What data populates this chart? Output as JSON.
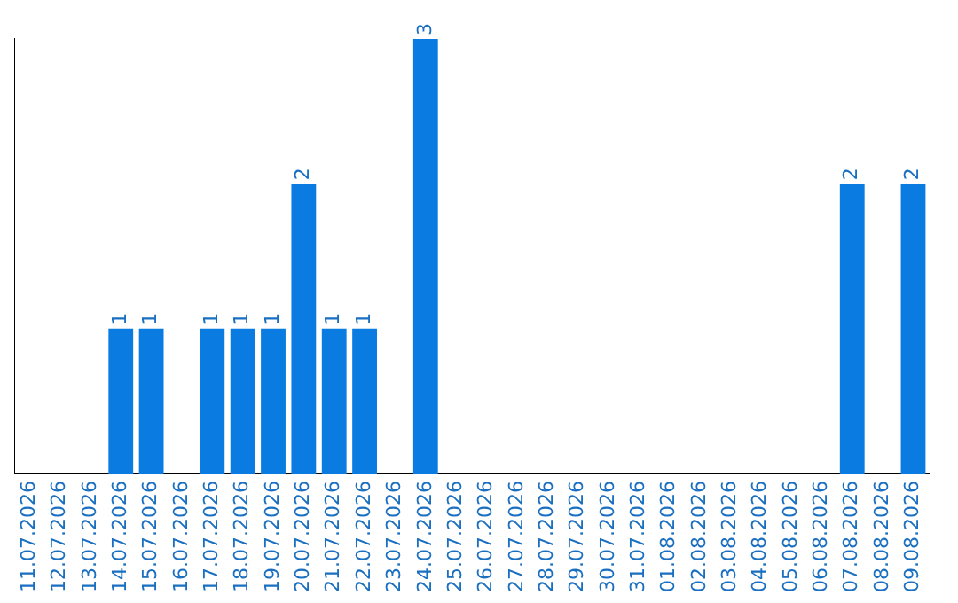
{
  "chart_data": {
    "type": "bar",
    "categories": [
      "11.07.2026",
      "12.07.2026",
      "13.07.2026",
      "14.07.2026",
      "15.07.2026",
      "16.07.2026",
      "17.07.2026",
      "18.07.2026",
      "19.07.2026",
      "20.07.2026",
      "21.07.2026",
      "22.07.2026",
      "23.07.2026",
      "24.07.2026",
      "25.07.2026",
      "26.07.2026",
      "27.07.2026",
      "28.07.2026",
      "29.07.2026",
      "30.07.2026",
      "31.07.2026",
      "01.08.2026",
      "02.08.2026",
      "03.08.2026",
      "04.08.2026",
      "05.08.2026",
      "06.08.2026",
      "07.08.2026",
      "08.08.2026",
      "09.08.2026"
    ],
    "values": [
      0,
      0,
      0,
      1,
      1,
      0,
      1,
      1,
      1,
      2,
      1,
      1,
      0,
      3,
      0,
      0,
      0,
      0,
      0,
      0,
      0,
      0,
      0,
      0,
      0,
      0,
      0,
      2,
      0,
      2
    ],
    "value_labels": [
      null,
      null,
      null,
      "1",
      "1",
      null,
      "1",
      "1",
      "1",
      "2",
      "1",
      "1",
      null,
      "3",
      null,
      null,
      null,
      null,
      null,
      null,
      null,
      null,
      null,
      null,
      null,
      null,
      null,
      "2",
      null,
      "2"
    ],
    "color": "#0a7be0",
    "grid": false,
    "legend": false,
    "tick_labels": "x"
  }
}
